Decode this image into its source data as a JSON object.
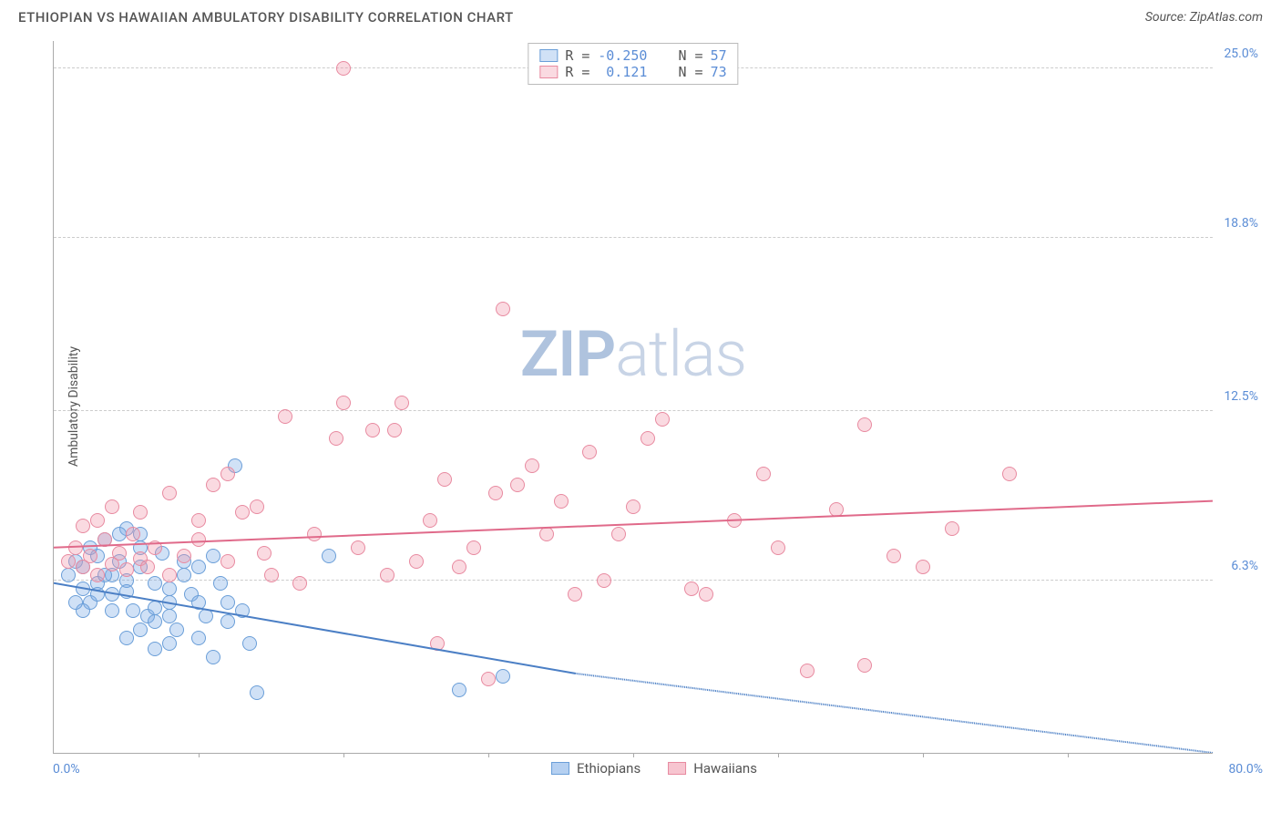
{
  "title": "ETHIOPIAN VS HAWAIIAN AMBULATORY DISABILITY CORRELATION CHART",
  "source": "Source: ZipAtlas.com",
  "ylabel": "Ambulatory Disability",
  "chart": {
    "type": "scatter",
    "xlim": [
      0,
      80
    ],
    "ylim": [
      0,
      26
    ],
    "yticks": [
      {
        "v": 6.3,
        "label": "6.3%"
      },
      {
        "v": 12.5,
        "label": "12.5%"
      },
      {
        "v": 18.8,
        "label": "18.8%"
      },
      {
        "v": 25.0,
        "label": "25.0%"
      }
    ],
    "xticks": [
      10,
      20,
      30,
      40,
      50,
      60,
      70
    ],
    "xlim_left_label": "0.0%",
    "xlim_right_label": "80.0%",
    "background": "#ffffff",
    "grid_color": "#cccccc",
    "axis_color": "#aaaaaa",
    "point_radius": 8,
    "series": [
      {
        "name": "Ethiopians",
        "fill": "rgba(120,170,230,0.35)",
        "stroke": "#6a9ed8",
        "r": "-0.250",
        "n": "57",
        "trend_color": "#4b7fc5",
        "trend": {
          "x1": 0,
          "y1": 6.2,
          "x2": 36,
          "y2": 2.9,
          "x3": 80,
          "y3": -1.0
        },
        "points": [
          [
            1,
            6.5
          ],
          [
            1.5,
            7
          ],
          [
            2,
            6
          ],
          [
            2,
            6.8
          ],
          [
            2.5,
            5.5
          ],
          [
            3,
            7.2
          ],
          [
            3,
            6.2
          ],
          [
            3.5,
            7.8
          ],
          [
            4,
            6.5
          ],
          [
            4,
            5.8
          ],
          [
            4.5,
            7
          ],
          [
            5,
            8.2
          ],
          [
            5,
            6.3
          ],
          [
            5.5,
            5.2
          ],
          [
            6,
            7.5
          ],
          [
            6,
            6.8
          ],
          [
            6.5,
            5
          ],
          [
            7,
            6.2
          ],
          [
            7,
            4.8
          ],
          [
            7.5,
            7.3
          ],
          [
            8,
            6
          ],
          [
            8,
            5.5
          ],
          [
            8.5,
            4.5
          ],
          [
            9,
            6.5
          ],
          [
            9.5,
            5.8
          ],
          [
            10,
            4.2
          ],
          [
            10,
            6.8
          ],
          [
            10.5,
            5
          ],
          [
            11,
            3.5
          ],
          [
            11.5,
            6.2
          ],
          [
            12,
            5.5
          ],
          [
            12,
            4.8
          ],
          [
            12.5,
            10.5
          ],
          [
            13,
            5.2
          ],
          [
            13.5,
            4
          ],
          [
            14,
            2.2
          ],
          [
            7,
            3.8
          ],
          [
            8,
            5
          ],
          [
            5,
            5.9
          ],
          [
            6,
            8
          ],
          [
            4,
            5.2
          ],
          [
            3,
            5.8
          ],
          [
            2,
            5.2
          ],
          [
            9,
            7
          ],
          [
            11,
            7.2
          ],
          [
            6,
            4.5
          ],
          [
            7,
            5.3
          ],
          [
            8,
            4
          ],
          [
            10,
            5.5
          ],
          [
            5,
            4.2
          ],
          [
            19,
            7.2
          ],
          [
            28,
            2.3
          ],
          [
            31,
            2.8
          ],
          [
            4.5,
            8
          ],
          [
            3.5,
            6.5
          ],
          [
            2.5,
            7.5
          ],
          [
            1.5,
            5.5
          ]
        ]
      },
      {
        "name": "Hawaiians",
        "fill": "rgba(240,150,170,0.35)",
        "stroke": "#e88aa0",
        "r": "0.121",
        "n": "73",
        "trend_color": "#e06a8a",
        "trend": {
          "x1": 0,
          "y1": 7.5,
          "x2": 80,
          "y2": 9.2
        },
        "points": [
          [
            1,
            7
          ],
          [
            1.5,
            7.5
          ],
          [
            2,
            6.8
          ],
          [
            2.5,
            7.2
          ],
          [
            3,
            6.5
          ],
          [
            3.5,
            7.8
          ],
          [
            4,
            6.9
          ],
          [
            4.5,
            7.3
          ],
          [
            5,
            6.7
          ],
          [
            5.5,
            8
          ],
          [
            6,
            7.1
          ],
          [
            6.5,
            6.8
          ],
          [
            7,
            7.5
          ],
          [
            8,
            6.5
          ],
          [
            9,
            7.2
          ],
          [
            10,
            8.5
          ],
          [
            11,
            9.8
          ],
          [
            12,
            7
          ],
          [
            13,
            8.8
          ],
          [
            14.5,
            7.3
          ],
          [
            16,
            12.3
          ],
          [
            17,
            6.2
          ],
          [
            18,
            8
          ],
          [
            19.5,
            11.5
          ],
          [
            20,
            12.8
          ],
          [
            21,
            7.5
          ],
          [
            22,
            11.8
          ],
          [
            23,
            6.5
          ],
          [
            23.5,
            11.8
          ],
          [
            24,
            12.8
          ],
          [
            25,
            7
          ],
          [
            26,
            8.5
          ],
          [
            26.5,
            4
          ],
          [
            27,
            10
          ],
          [
            28,
            6.8
          ],
          [
            29,
            7.5
          ],
          [
            30,
            2.7
          ],
          [
            30.5,
            9.5
          ],
          [
            31,
            16.2
          ],
          [
            32,
            9.8
          ],
          [
            33,
            10.5
          ],
          [
            34,
            8
          ],
          [
            35,
            9.2
          ],
          [
            36,
            5.8
          ],
          [
            37,
            11
          ],
          [
            38,
            6.3
          ],
          [
            39,
            8
          ],
          [
            40,
            9
          ],
          [
            41,
            11.5
          ],
          [
            42,
            12.2
          ],
          [
            44,
            6
          ],
          [
            45,
            5.8
          ],
          [
            47,
            8.5
          ],
          [
            49,
            10.2
          ],
          [
            50,
            7.5
          ],
          [
            52,
            3
          ],
          [
            54,
            8.9
          ],
          [
            56,
            12
          ],
          [
            58,
            7.2
          ],
          [
            60,
            6.8
          ],
          [
            62,
            8.2
          ],
          [
            56,
            3.2
          ],
          [
            66,
            10.2
          ],
          [
            20,
            25
          ],
          [
            2,
            8.3
          ],
          [
            3,
            8.5
          ],
          [
            4,
            9
          ],
          [
            12,
            10.2
          ],
          [
            8,
            9.5
          ],
          [
            6,
            8.8
          ],
          [
            10,
            7.8
          ],
          [
            14,
            9
          ],
          [
            15,
            6.5
          ]
        ]
      }
    ]
  },
  "legend_bottom": [
    {
      "label": "Ethiopians",
      "fill": "rgba(120,170,230,0.55)",
      "stroke": "#6a9ed8"
    },
    {
      "label": "Hawaiians",
      "fill": "rgba(240,150,170,0.55)",
      "stroke": "#e88aa0"
    }
  ],
  "watermark_left": "ZIP",
  "watermark_right": "atlas"
}
